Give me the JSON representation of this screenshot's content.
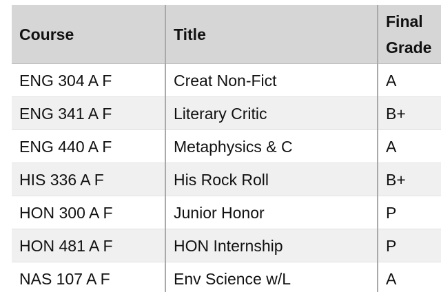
{
  "table": {
    "headers": {
      "course": "Course",
      "title": "Title",
      "grade_line1": "Final",
      "grade_line2": "Grade"
    },
    "rows": [
      {
        "course": "ENG 304 A F",
        "title": "Creat Non-Fict",
        "grade": "A"
      },
      {
        "course": "ENG 341 A F",
        "title": "Literary Critic",
        "grade": "B+"
      },
      {
        "course": "ENG 440 A F",
        "title": "Metaphysics & C",
        "grade": "A"
      },
      {
        "course": "HIS 336 A F",
        "title": "His Rock Roll",
        "grade": "B+"
      },
      {
        "course": "HON 300 A F",
        "title": "Junior Honor",
        "grade": "P"
      },
      {
        "course": "HON 481 A F",
        "title": "HON Internship",
        "grade": "P"
      },
      {
        "course": "NAS 107 A F",
        "title": "Env Science w/L",
        "grade": "A"
      }
    ]
  },
  "colors": {
    "header_bg": "#d6d6d6",
    "alt_row_bg": "#f0f0f0",
    "row_bg": "#ffffff",
    "divider": "#a9a9a9",
    "text": "#111111"
  }
}
